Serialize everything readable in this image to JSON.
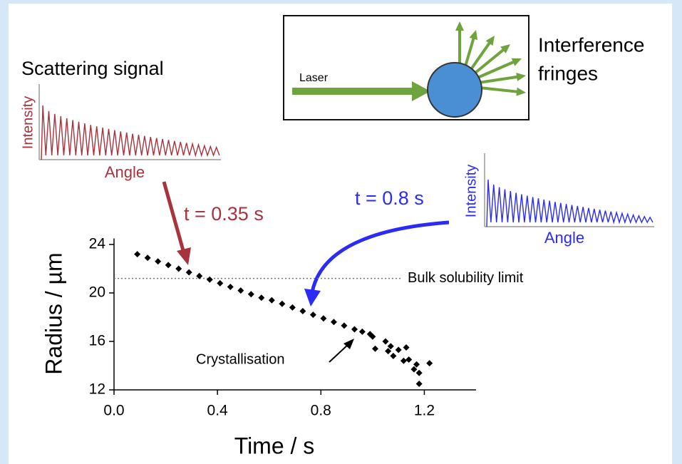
{
  "chart_data": {
    "type": "scatter",
    "xlabel": "Time / s",
    "ylabel": "Radius / µm",
    "xlim": [
      0,
      1.4
    ],
    "ylim": [
      12,
      24.5
    ],
    "xticks": [
      {
        "value": 0,
        "label": "0.0"
      },
      0.4,
      0.8,
      1.2
    ],
    "yticks": [
      12,
      16,
      20,
      24
    ],
    "color": "#000000",
    "x": [
      0.09,
      0.13,
      0.17,
      0.21,
      0.25,
      0.29,
      0.33,
      0.37,
      0.41,
      0.45,
      0.49,
      0.53,
      0.57,
      0.61,
      0.65,
      0.69,
      0.73,
      0.77,
      0.81,
      0.85,
      0.89,
      0.93,
      0.96,
      0.99,
      1.0,
      1.05,
      1.01,
      1.06,
      1.07,
      1.08,
      1.1,
      1.12,
      1.13,
      1.14,
      1.16,
      1.17,
      1.18,
      1.22,
      1.18
    ],
    "values": [
      23.2,
      22.9,
      22.6,
      22.3,
      22.0,
      21.7,
      21.4,
      21.1,
      20.8,
      20.5,
      20.2,
      19.9,
      19.6,
      19.4,
      19.1,
      18.8,
      18.5,
      18.2,
      17.9,
      17.6,
      17.3,
      17.0,
      16.8,
      16.6,
      16.4,
      16.0,
      15.4,
      15.2,
      15.6,
      14.8,
      15.3,
      14.4,
      15.5,
      14.5,
      13.7,
      14.1,
      13.4,
      14.2,
      12.5
    ],
    "reference_line": {
      "value": 21.2,
      "label": "Bulk solubility limit"
    },
    "annotation": "Crystallisation"
  },
  "insets": [
    {
      "title": "Scattering signal",
      "ylabel": "Intensity",
      "xlabel": "Angle",
      "time_label": "t = 0.35 s",
      "color": "#a8323e"
    },
    {
      "ylabel": "Intensity",
      "xlabel": "Angle",
      "time_label": "t = 0.8 s",
      "color": "#2b2bf5"
    }
  ],
  "diagram": {
    "beam_label": "Laser",
    "fringes_label": [
      "Interference",
      "fringes"
    ]
  }
}
